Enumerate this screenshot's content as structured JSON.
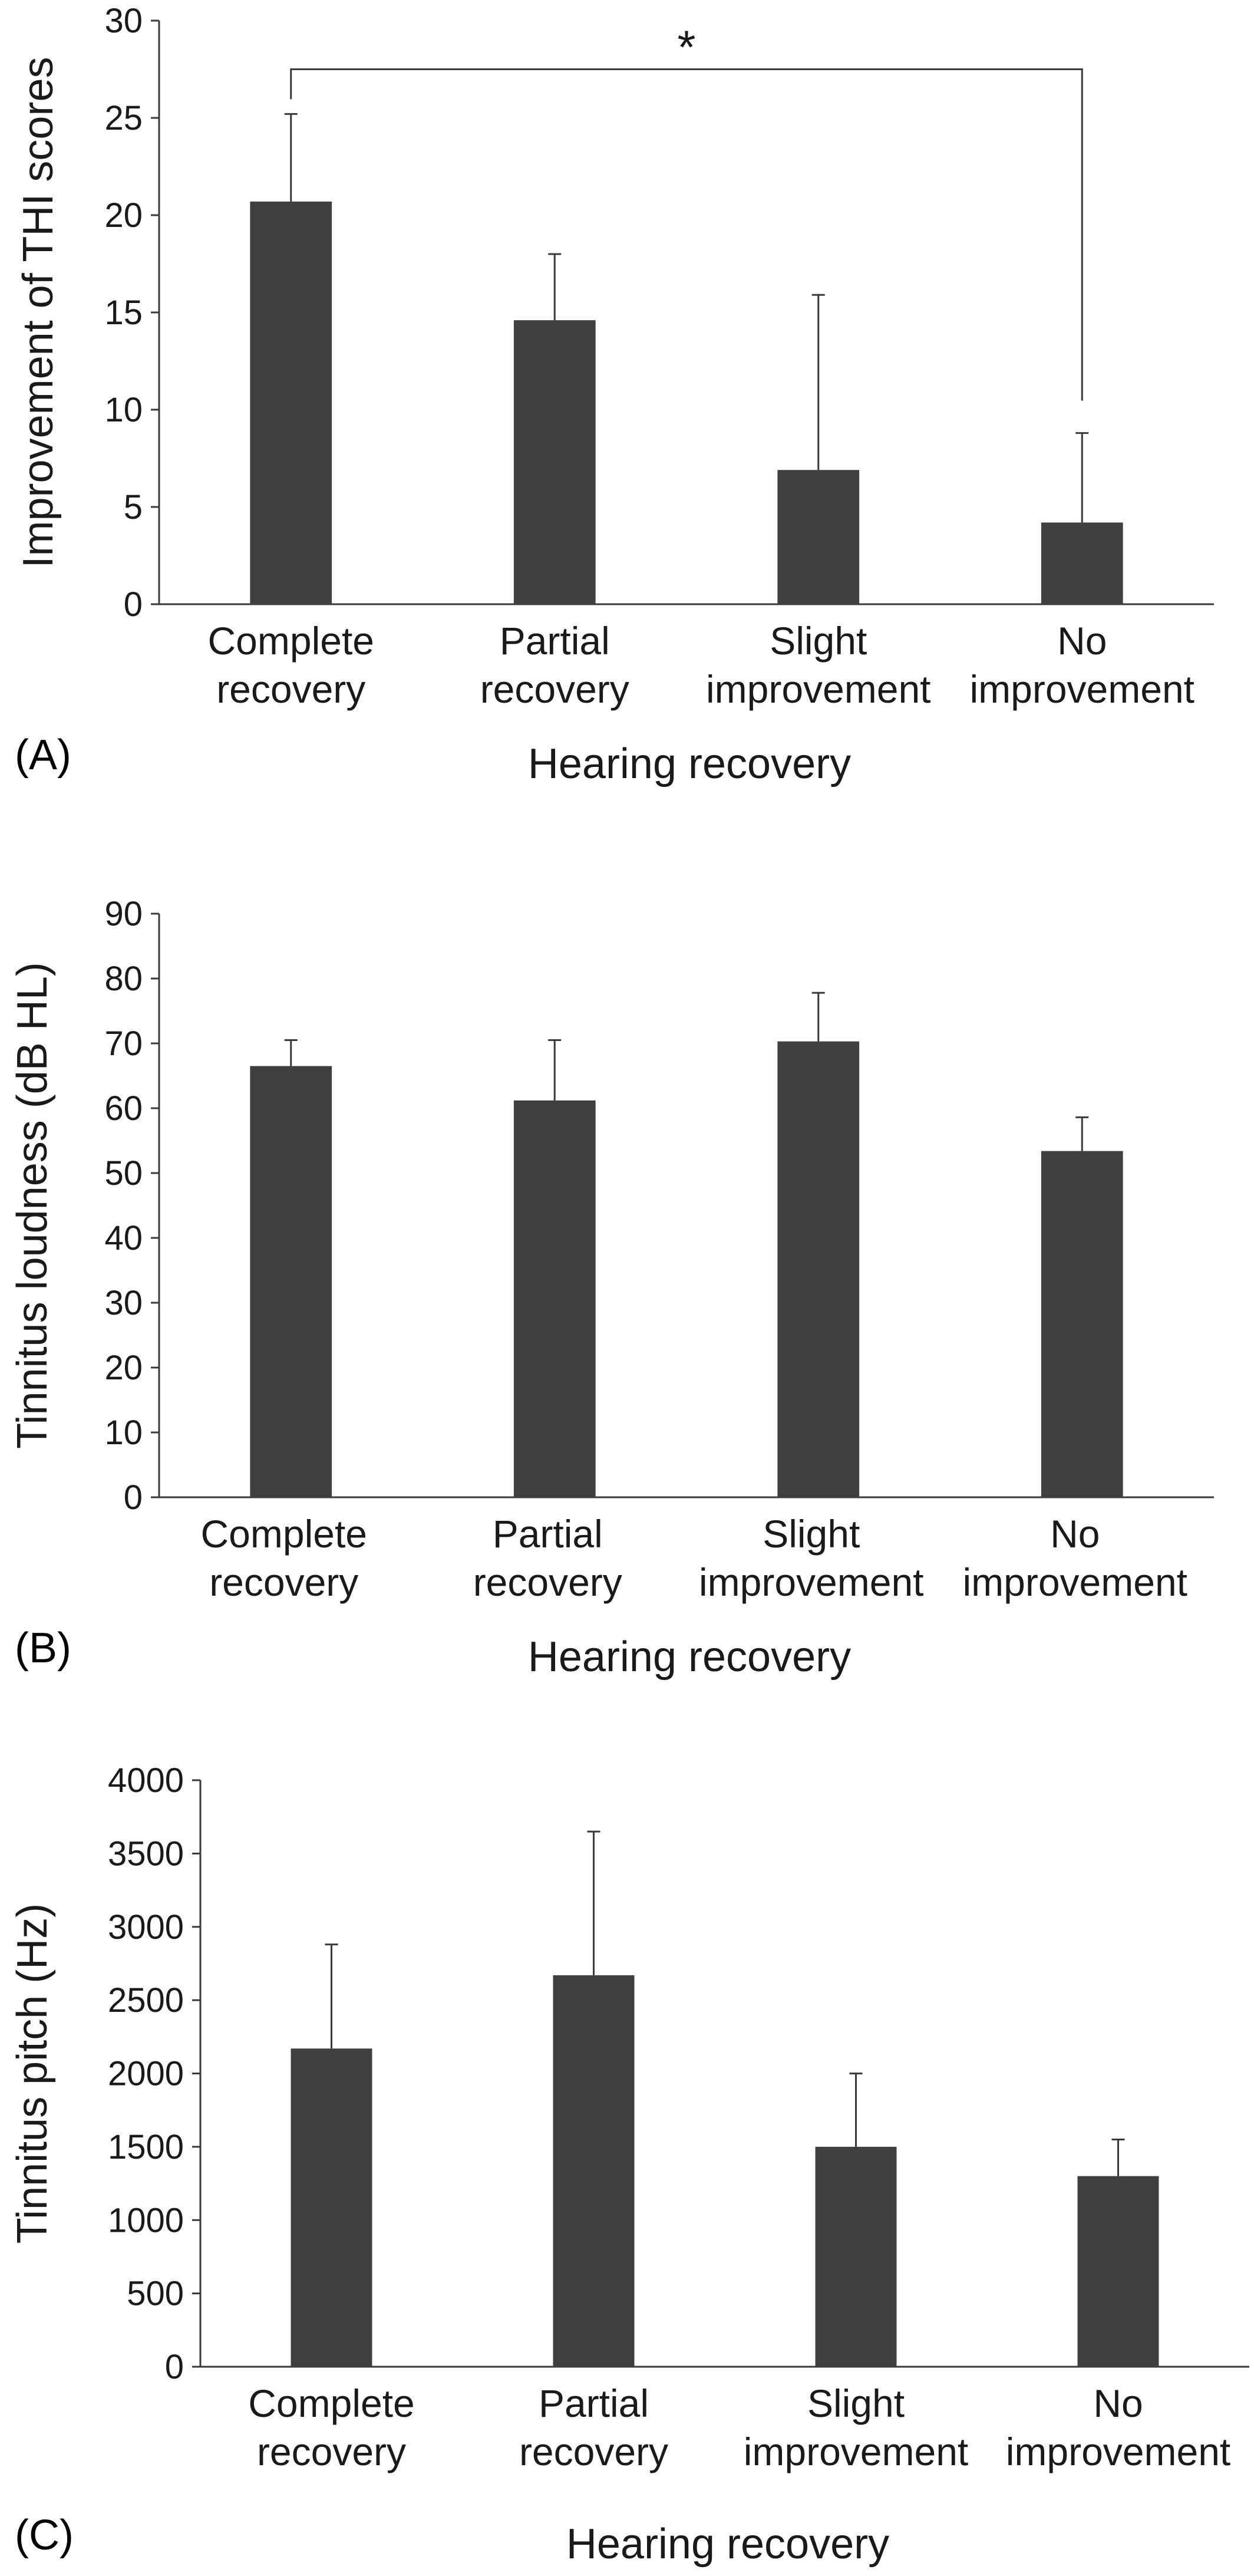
{
  "figure": {
    "bar_color": "#3f3f3f",
    "axis_color": "#3a3a3a",
    "error_color": "#3a3a3a"
  },
  "chart_data": [
    {
      "type": "bar",
      "panel_label": "(A)",
      "xlabel": "Hearing recovery",
      "ylabel": "Improvement of THI scores",
      "ylim": [
        0,
        30
      ],
      "yticks": [
        0,
        5,
        10,
        15,
        20,
        25,
        30
      ],
      "categories": [
        [
          "Complete",
          "recovery"
        ],
        [
          "Partial",
          "recovery"
        ],
        [
          "Slight",
          "improvement"
        ],
        [
          "No",
          "improvement"
        ]
      ],
      "values": [
        20.7,
        14.6,
        6.9,
        4.2
      ],
      "error_upper": [
        25.2,
        18.0,
        15.9,
        8.8
      ],
      "significance": {
        "from": 0,
        "to": 3,
        "level": 27.5,
        "label": "*"
      }
    },
    {
      "type": "bar",
      "panel_label": "(B)",
      "xlabel": "Hearing recovery",
      "ylabel": "Tinnitus loudness (dB HL)",
      "ylim": [
        0,
        90
      ],
      "yticks": [
        0,
        10,
        20,
        30,
        40,
        50,
        60,
        70,
        80,
        90
      ],
      "categories": [
        [
          "Complete",
          "recovery"
        ],
        [
          "Partial",
          "recovery"
        ],
        [
          "Slight",
          "improvement"
        ],
        [
          "No",
          "improvement"
        ]
      ],
      "values": [
        66.5,
        61.2,
        70.3,
        53.4
      ],
      "error_upper": [
        70.5,
        70.5,
        77.8,
        58.6
      ]
    },
    {
      "type": "bar",
      "panel_label": "(C)",
      "xlabel": "Hearing recovery",
      "ylabel": "Tinnitus pitch (Hz)",
      "ylim": [
        0,
        4000
      ],
      "yticks": [
        0,
        500,
        1000,
        1500,
        2000,
        2500,
        3000,
        3500,
        4000
      ],
      "categories": [
        [
          "Complete",
          "recovery"
        ],
        [
          "Partial",
          "recovery"
        ],
        [
          "Slight",
          "improvement"
        ],
        [
          "No",
          "improvement"
        ]
      ],
      "values": [
        2170,
        2670,
        1500,
        1300
      ],
      "error_upper": [
        2880,
        3650,
        2000,
        1550
      ]
    }
  ]
}
